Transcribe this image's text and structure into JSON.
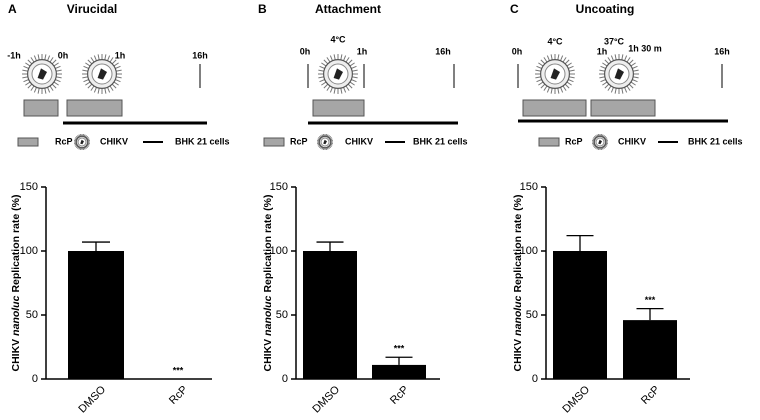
{
  "chart_data": [
    {
      "type": "bar",
      "panel_label": "A",
      "title": "Virucidal",
      "y_label": {
        "prefix": "CHIKV",
        "italic": "nanoluc",
        "suffix": "Replication rate (%)"
      },
      "categories": [
        "DMSO",
        "RcP"
      ],
      "values": [
        100,
        0
      ],
      "errors": [
        7,
        0
      ],
      "significance": [
        null,
        "***"
      ],
      "color": "#000000",
      "ylim": [
        0,
        150
      ],
      "yticks": [
        0,
        50,
        100,
        150
      ]
    },
    {
      "type": "bar",
      "panel_label": "B",
      "title": "Attachment",
      "y_label": {
        "prefix": "CHIKV",
        "italic": "nanoluc",
        "suffix": "Replication rate (%)"
      },
      "categories": [
        "DMSO",
        "RcP"
      ],
      "values": [
        100,
        11
      ],
      "errors": [
        7,
        6
      ],
      "significance": [
        null,
        "***"
      ],
      "color": "#000000",
      "ylim": [
        0,
        150
      ],
      "yticks": [
        0,
        50,
        100,
        150
      ]
    },
    {
      "type": "bar",
      "panel_label": "C",
      "title": "Uncoating",
      "y_label": {
        "prefix": "CHIKV",
        "italic": "nanoluc",
        "suffix": "Replication rate (%)"
      },
      "categories": [
        "DMSO",
        "RcP"
      ],
      "values": [
        100,
        46
      ],
      "errors": [
        12,
        9
      ],
      "significance": [
        null,
        "***"
      ],
      "color": "#000000",
      "ylim": [
        0,
        150
      ],
      "yticks": [
        0,
        50,
        100,
        150
      ]
    }
  ],
  "diagrams": [
    {
      "labels": [
        "-1h",
        "0h",
        "1h",
        "16h"
      ],
      "legend": [
        "RcP",
        "CHIKV",
        "BHK 21 cells"
      ]
    },
    {
      "labels": [
        "0h",
        "4°C",
        "1h",
        "16h"
      ],
      "legend": [
        "RcP",
        "CHIKV",
        "BHK 21 cells"
      ]
    },
    {
      "labels": [
        "0h",
        "4°C",
        "1h",
        "37°C",
        "1h 30 m",
        "16h"
      ],
      "legend": [
        "RcP",
        "CHIKV",
        "BHK 21 cells"
      ]
    }
  ]
}
